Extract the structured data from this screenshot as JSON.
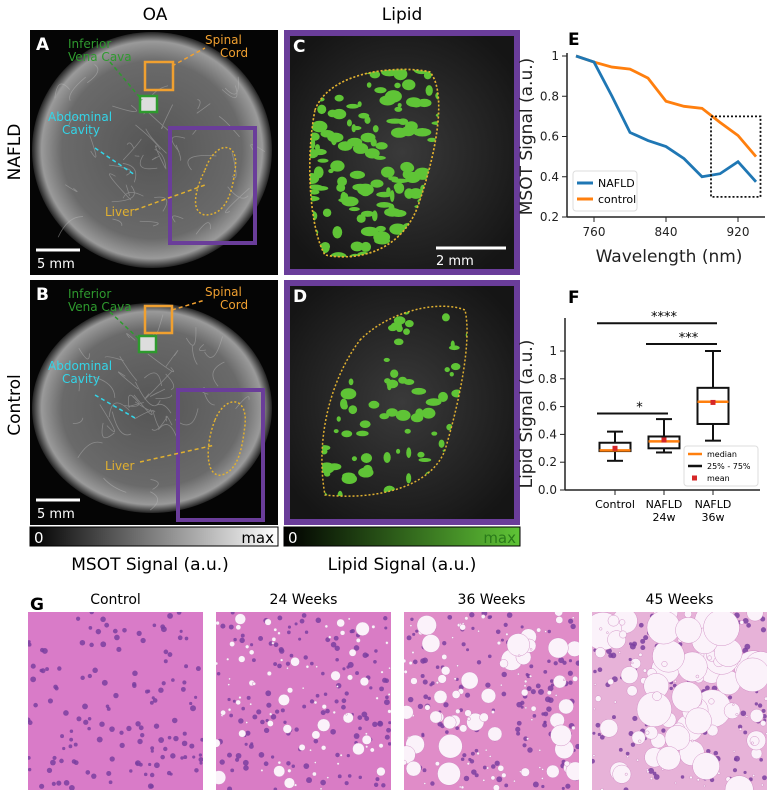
{
  "column_titles": {
    "oa": "OA",
    "lipid": "Lipid"
  },
  "row_labels": {
    "top": "NAFLD",
    "bottom": "Control"
  },
  "panel_labels": {
    "a": "A",
    "b": "B",
    "c": "C",
    "d": "D",
    "e": "E",
    "f": "F",
    "g": "G"
  },
  "annotations": {
    "ivc_line1": "Inferior",
    "ivc_line2": "Vena Cava",
    "cord_line1": "Spinal",
    "cord_line2": "Cord",
    "cavity_line1": "Abdominal",
    "cavity_line2": "Cavity",
    "liver": "Liver"
  },
  "scale_bars": {
    "oa": "5 mm",
    "lipid": "2 mm"
  },
  "colorbars": {
    "msot": {
      "min": "0",
      "max": "max",
      "label": "MSOT Signal (a.u.)"
    },
    "lipid": {
      "min": "0",
      "max": "max",
      "label": "Lipid Signal (a.u.)"
    }
  },
  "colors": {
    "nafld": "#1f77b4",
    "control": "#ff7f0e",
    "ivc": "#2e9a2e",
    "cord": "#f0a030",
    "cavity": "#33d5e8",
    "liver": "#e0b030",
    "roi": "#6a3d9a",
    "lipid": "#5fc436",
    "mean": "#d62728"
  },
  "histology": {
    "titles": [
      "Control",
      "24 Weeks",
      "36 Weeks",
      "45 Weeks"
    ]
  },
  "chart_data": [
    {
      "type": "line",
      "panel": "E",
      "xlabel": "Wavelength (nm)",
      "ylabel": "MSOT Signal (a.u.)",
      "xlim": [
        730,
        950
      ],
      "ylim": [
        0.2,
        1.0
      ],
      "xticks": [
        "760",
        "840",
        "920"
      ],
      "yticks": [
        "0.2",
        "0.4",
        "0.6",
        "0.8",
        "1"
      ],
      "x": [
        740,
        760,
        780,
        800,
        820,
        840,
        860,
        880,
        900,
        920,
        940
      ],
      "series": [
        {
          "name": "NAFLD",
          "values": [
            1.0,
            0.97,
            0.8,
            0.62,
            0.58,
            0.55,
            0.49,
            0.4,
            0.415,
            0.475,
            0.375
          ]
        },
        {
          "name": "control",
          "values": [
            1.0,
            0.97,
            0.945,
            0.935,
            0.89,
            0.775,
            0.75,
            0.74,
            0.67,
            0.605,
            0.5
          ]
        }
      ],
      "highlight_box": {
        "x": [
          890,
          945
        ],
        "y": [
          0.3,
          0.7
        ]
      },
      "legend": "bottom-left",
      "grid": false
    },
    {
      "type": "box",
      "panel": "F",
      "ylabel": "Lipid Signal (a.u.)",
      "ylim": [
        0.0,
        1.2
      ],
      "yticks": [
        "0.0",
        "0.2",
        "0.4",
        "0.6",
        "0.8",
        "1"
      ],
      "categories": [
        "Control",
        "NAFLD\n24w",
        "NAFLD\n36w"
      ],
      "category_lines": [
        [
          "Control"
        ],
        [
          "NAFLD",
          "24w"
        ],
        [
          "NAFLD",
          "36w"
        ]
      ],
      "boxes": [
        {
          "whisker_low": 0.21,
          "q1": 0.28,
          "median": 0.285,
          "q3": 0.34,
          "whisker_high": 0.42,
          "mean": 0.3
        },
        {
          "whisker_low": 0.27,
          "q1": 0.3,
          "median": 0.35,
          "q3": 0.385,
          "whisker_high": 0.51,
          "mean": 0.36
        },
        {
          "whisker_low": 0.355,
          "q1": 0.475,
          "median": 0.635,
          "q3": 0.735,
          "whisker_high": 1.0,
          "mean": 0.63
        }
      ],
      "significance": [
        {
          "from": 0,
          "to": 1,
          "y": 0.55,
          "label": "*"
        },
        {
          "from": 1,
          "to": 2,
          "y": 1.05,
          "label": "***"
        },
        {
          "from": 0,
          "to": 2,
          "y": 1.2,
          "label": "****"
        }
      ],
      "legend_entries": [
        "median",
        "25% - 75%",
        "mean"
      ],
      "legend": "bottom-right",
      "grid": false
    }
  ]
}
